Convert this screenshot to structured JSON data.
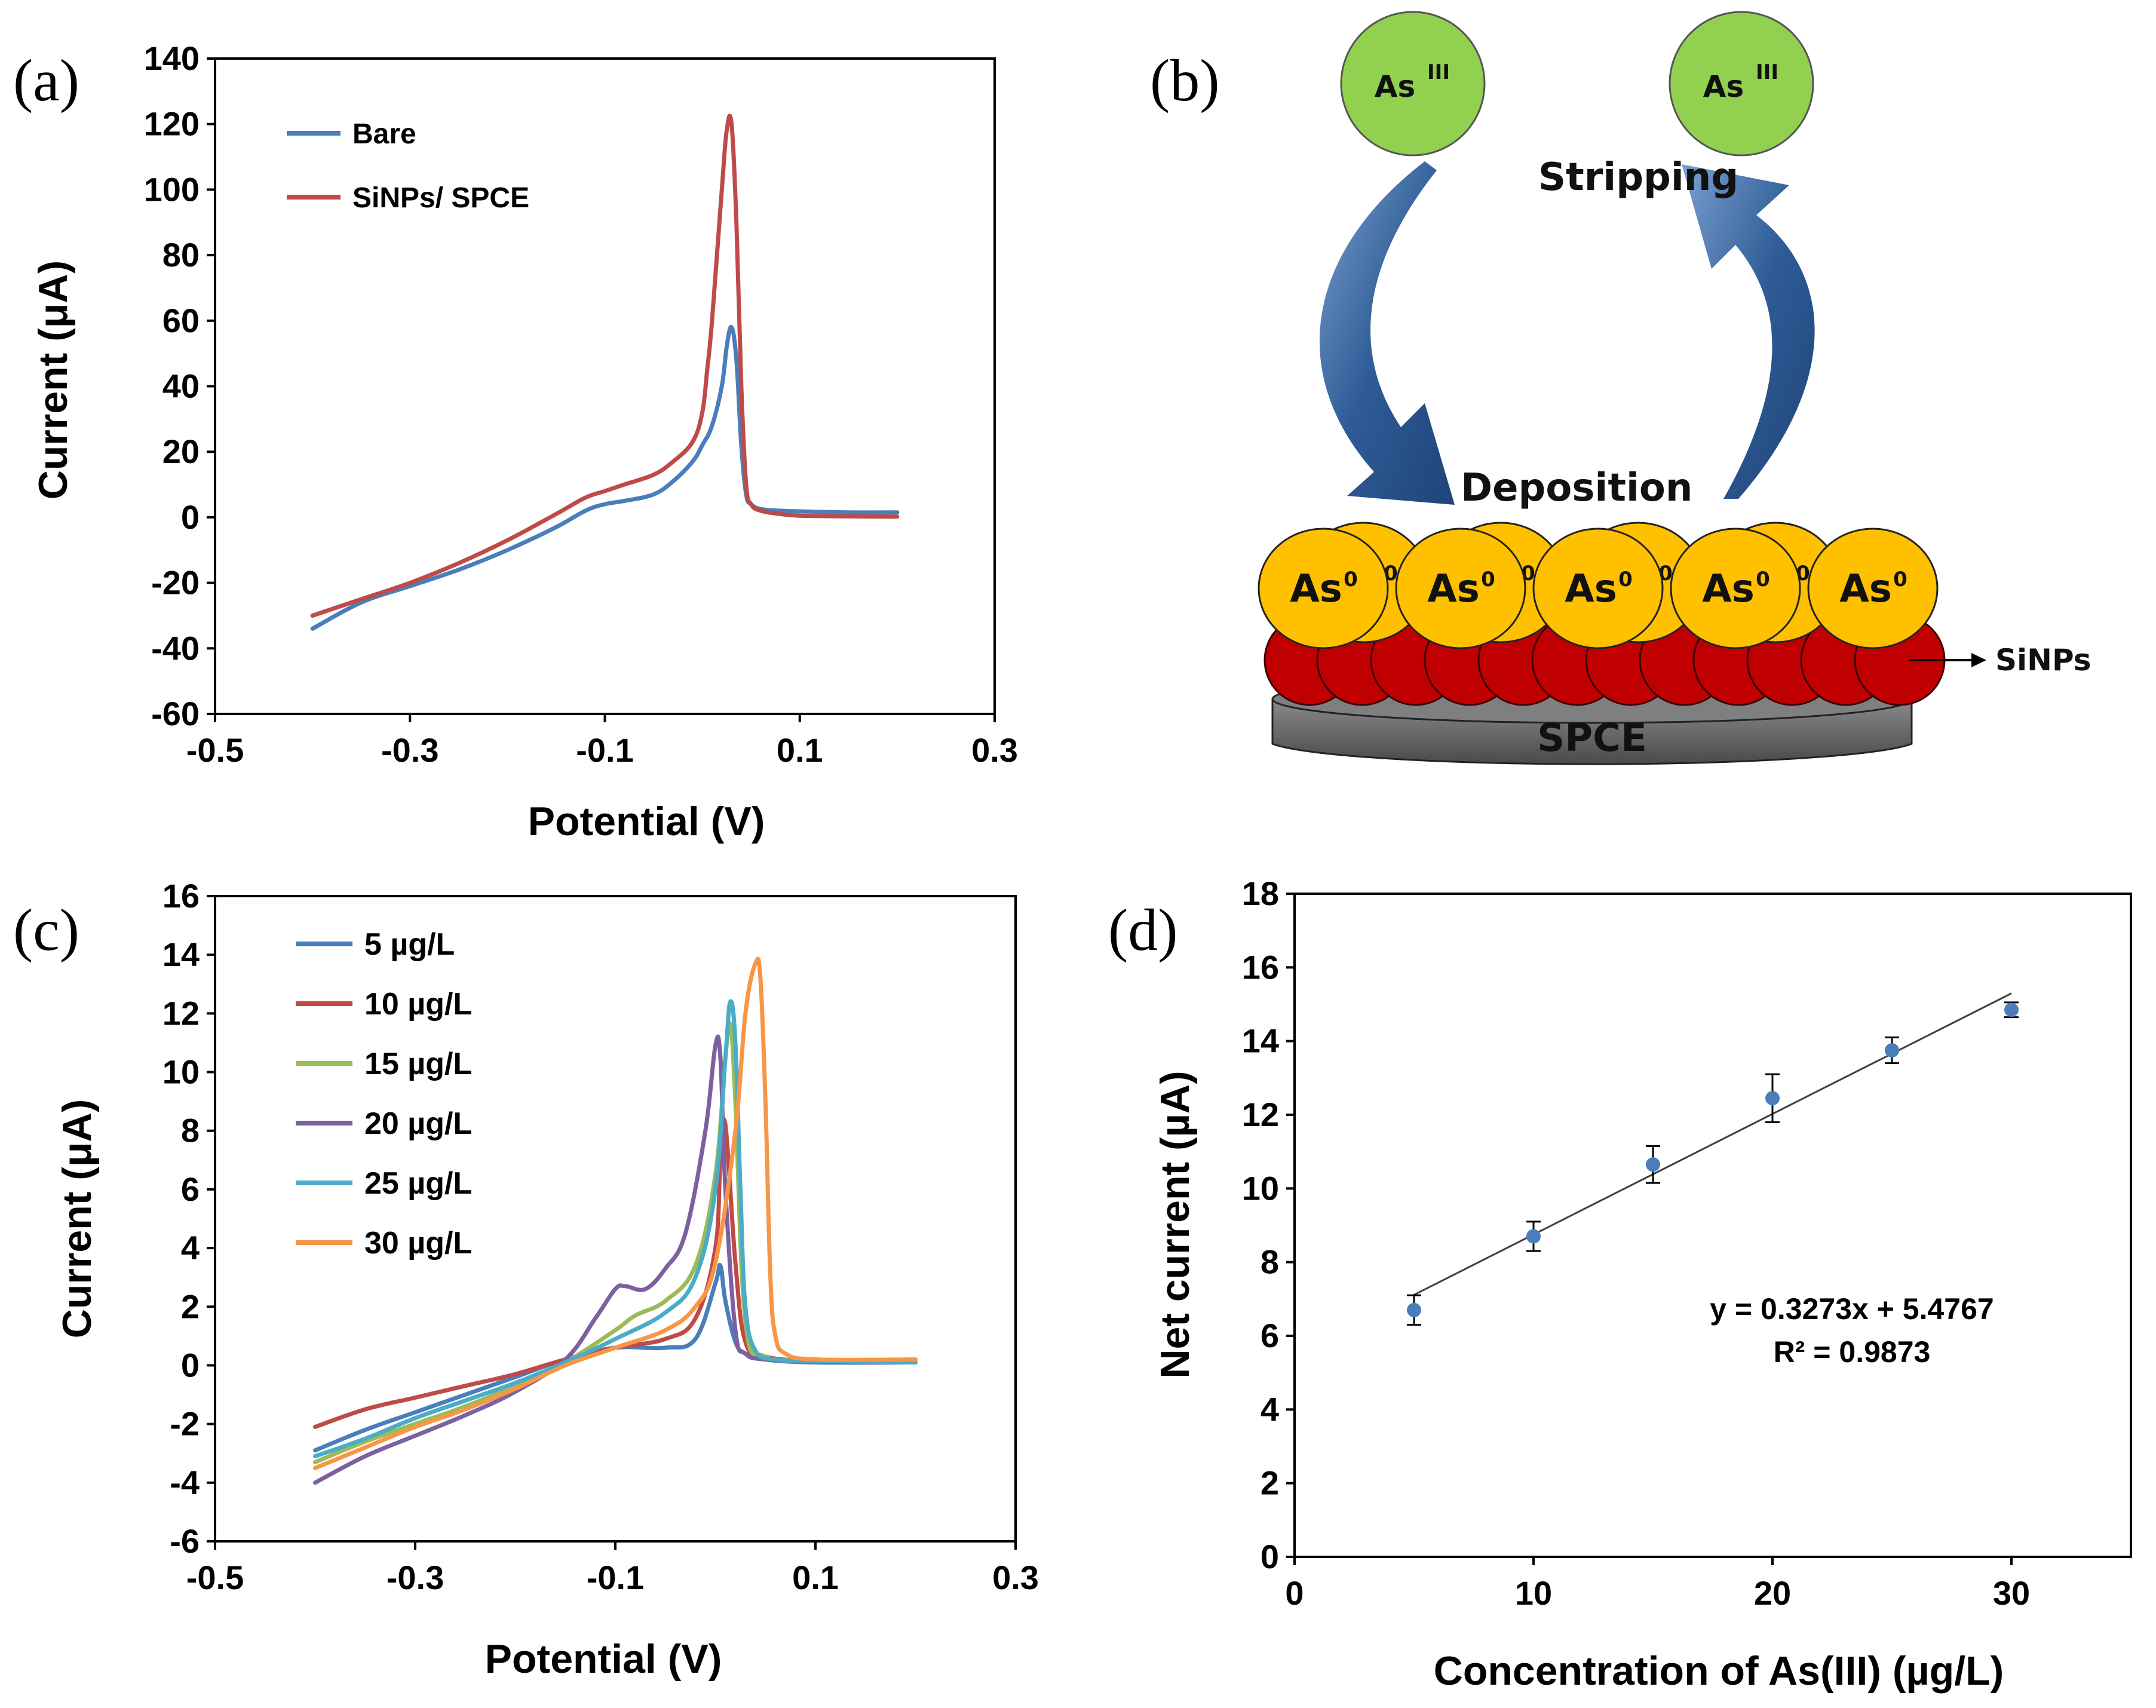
{
  "figure_labels": {
    "a": "(a)",
    "b": "(b)",
    "c": "(c)",
    "d": "(d)"
  },
  "schematic": {
    "ion_label": "As",
    "ion_superscript": "III",
    "stripping_label": "Stripping",
    "deposition_label": "Deposition",
    "metal_label": "As",
    "metal_superscript": "0",
    "nanoparticle_label": "SiNPs",
    "electrode_label": "SPCE",
    "colors": {
      "ion": "#92d050",
      "metal": "#ffc000",
      "nanoparticle": "#c00000",
      "electrode": "#595959",
      "arrow": "#2e5b96"
    }
  },
  "chart_data": [
    {
      "id": "a",
      "type": "line",
      "xlabel": "Potential (V)",
      "ylabel": "Current (μA)",
      "xlim": [
        -0.5,
        0.3
      ],
      "ylim": [
        -60,
        140
      ],
      "xticks": [
        -0.5,
        -0.3,
        -0.1,
        0.1,
        0.3
      ],
      "xtick_labels": [
        "-0.5",
        "-0.3",
        "-0.1",
        "0.1",
        "0.3"
      ],
      "yticks": [
        -60,
        -40,
        -20,
        0,
        20,
        40,
        60,
        80,
        100,
        120,
        140
      ],
      "ytick_labels": [
        "-60",
        "-40",
        "-20",
        "0",
        "20",
        "40",
        "60",
        "80",
        "100",
        "120",
        "140"
      ],
      "legend_position": "top-left",
      "series": [
        {
          "name": "Bare",
          "color": "#4a7ebb",
          "x": [
            -0.4,
            -0.35,
            -0.3,
            -0.25,
            -0.2,
            -0.15,
            -0.12,
            -0.1,
            -0.08,
            -0.05,
            -0.03,
            -0.01,
            0.0,
            0.01,
            0.02,
            0.025,
            0.03,
            0.035,
            0.04,
            0.045,
            0.05,
            0.06,
            0.08,
            0.1,
            0.15,
            0.2
          ],
          "y": [
            -34,
            -26,
            -21,
            -16,
            -10,
            -3,
            2,
            4,
            5,
            7,
            11,
            17,
            22,
            28,
            40,
            52,
            58,
            48,
            22,
            7,
            4,
            2.5,
            2,
            1.8,
            1.5,
            1.5
          ]
        },
        {
          "name": "SiNPs/ SPCE",
          "color": "#be4b48",
          "x": [
            -0.4,
            -0.35,
            -0.3,
            -0.25,
            -0.2,
            -0.15,
            -0.12,
            -0.1,
            -0.08,
            -0.05,
            -0.03,
            -0.01,
            0.0,
            0.005,
            0.01,
            0.02,
            0.025,
            0.03,
            0.035,
            0.04,
            0.045,
            0.05,
            0.06,
            0.08,
            0.1,
            0.15,
            0.2
          ],
          "y": [
            -30,
            -25,
            -20,
            -14,
            -7,
            1,
            6,
            8,
            10,
            13,
            17,
            23,
            32,
            45,
            60,
            100,
            118,
            120,
            90,
            40,
            10,
            4,
            2,
            1,
            0.5,
            0.3,
            0.2
          ]
        }
      ]
    },
    {
      "id": "c",
      "type": "line",
      "xlabel": "Potential (V)",
      "ylabel": "Current (μA)",
      "xlim": [
        -0.5,
        0.3
      ],
      "ylim": [
        -6,
        16
      ],
      "xticks": [
        -0.5,
        -0.3,
        -0.1,
        0.1,
        0.3
      ],
      "xtick_labels": [
        "-0.5",
        "-0.3",
        "-0.1",
        "0.1",
        "0.3"
      ],
      "yticks": [
        -6,
        -4,
        -2,
        0,
        2,
        4,
        6,
        8,
        10,
        12,
        14,
        16
      ],
      "ytick_labels": [
        "-6",
        "-4",
        "-2",
        "0",
        "2",
        "4",
        "6",
        "8",
        "10",
        "12",
        "14",
        "16"
      ],
      "legend_position": "top-left",
      "series": [
        {
          "name": "5 µg/L",
          "color": "#4a7ebb",
          "x": [
            -0.4,
            -0.35,
            -0.3,
            -0.25,
            -0.2,
            -0.15,
            -0.1,
            -0.05,
            -0.02,
            0.0,
            0.005,
            0.01,
            0.02,
            0.03,
            0.05,
            0.1,
            0.2
          ],
          "y": [
            -2.9,
            -2.2,
            -1.6,
            -1.0,
            -0.4,
            0.2,
            0.6,
            0.6,
            0.9,
            2.8,
            3.4,
            2.2,
            0.8,
            0.4,
            0.2,
            0.1,
            0.1
          ]
        },
        {
          "name": "10 µg/L",
          "color": "#be4b48",
          "x": [
            -0.4,
            -0.35,
            -0.3,
            -0.25,
            -0.2,
            -0.15,
            -0.1,
            -0.05,
            -0.02,
            0.0,
            0.005,
            0.01,
            0.02,
            0.03,
            0.05,
            0.1,
            0.2
          ],
          "y": [
            -2.1,
            -1.5,
            -1.1,
            -0.7,
            -0.3,
            0.2,
            0.6,
            0.9,
            1.6,
            4.0,
            7.0,
            8.2,
            3.5,
            0.8,
            0.3,
            0.15,
            0.1
          ]
        },
        {
          "name": "15 µg/L",
          "color": "#9bbb59",
          "x": [
            -0.4,
            -0.35,
            -0.3,
            -0.25,
            -0.2,
            -0.15,
            -0.1,
            -0.08,
            -0.05,
            -0.02,
            0.0,
            0.01,
            0.015,
            0.02,
            0.03,
            0.05,
            0.1,
            0.2
          ],
          "y": [
            -3.3,
            -2.6,
            -2.0,
            -1.4,
            -0.7,
            0.1,
            1.2,
            1.7,
            2.2,
            3.4,
            6.5,
            10.5,
            11.6,
            9.0,
            1.5,
            0.3,
            0.2,
            0.1
          ]
        },
        {
          "name": "20 µg/L",
          "color": "#7d60a0",
          "x": [
            -0.4,
            -0.35,
            -0.3,
            -0.25,
            -0.2,
            -0.15,
            -0.12,
            -0.1,
            -0.09,
            -0.07,
            -0.05,
            -0.03,
            -0.01,
            0.0,
            0.005,
            0.01,
            0.02,
            0.03,
            0.05,
            0.1,
            0.2
          ],
          "y": [
            -4.0,
            -3.1,
            -2.4,
            -1.7,
            -0.9,
            0.2,
            1.6,
            2.6,
            2.7,
            2.6,
            3.3,
            4.5,
            8.0,
            10.9,
            10.5,
            6.0,
            1.2,
            0.4,
            0.2,
            0.15,
            0.1
          ]
        },
        {
          "name": "25 µg/L",
          "color": "#4bacc6",
          "x": [
            -0.4,
            -0.35,
            -0.3,
            -0.25,
            -0.2,
            -0.15,
            -0.1,
            -0.05,
            -0.02,
            0.0,
            0.01,
            0.015,
            0.02,
            0.025,
            0.03,
            0.04,
            0.06,
            0.1,
            0.2
          ],
          "y": [
            -3.1,
            -2.5,
            -1.8,
            -1.2,
            -0.6,
            0.1,
            0.9,
            1.8,
            3.0,
            6.0,
            10.5,
            12.4,
            11.0,
            6.0,
            2.0,
            0.5,
            0.2,
            0.15,
            0.1
          ]
        },
        {
          "name": "30 µg/L",
          "color": "#f79646",
          "x": [
            -0.4,
            -0.35,
            -0.3,
            -0.25,
            -0.2,
            -0.15,
            -0.1,
            -0.05,
            -0.02,
            0.0,
            0.02,
            0.03,
            0.04,
            0.045,
            0.05,
            0.055,
            0.06,
            0.07,
            0.1,
            0.2
          ],
          "y": [
            -3.5,
            -2.8,
            -2.1,
            -1.5,
            -0.8,
            0.0,
            0.6,
            1.2,
            2.0,
            3.5,
            8.0,
            12.0,
            13.7,
            13.2,
            9.0,
            3.0,
            1.0,
            0.4,
            0.2,
            0.2
          ]
        }
      ]
    },
    {
      "id": "d",
      "type": "scatter",
      "xlabel": "Concentration of As(III) (µg/L)",
      "ylabel": "Net current (µA)",
      "xlim": [
        0,
        35
      ],
      "ylim": [
        0,
        18
      ],
      "xticks": [
        0,
        10,
        20,
        30
      ],
      "xtick_labels": [
        "0",
        "10",
        "20",
        "30"
      ],
      "yticks": [
        0,
        2,
        4,
        6,
        8,
        10,
        12,
        14,
        16,
        18
      ],
      "ytick_labels": [
        "0",
        "2",
        "4",
        "6",
        "8",
        "10",
        "12",
        "14",
        "16",
        "18"
      ],
      "series": [
        {
          "name": "Net current",
          "color": "#4a7ebb",
          "x": [
            5,
            10,
            15,
            20,
            25,
            30
          ],
          "y": [
            6.7,
            8.7,
            10.65,
            12.45,
            13.75,
            14.85
          ],
          "err": [
            0.4,
            0.4,
            0.5,
            0.65,
            0.35,
            0.2
          ]
        }
      ],
      "trendline": {
        "slope": 0.3273,
        "intercept": 5.4767,
        "x_range": [
          5,
          30
        ],
        "color": "#404040"
      },
      "equation": "y = 0.3273x + 5.4767",
      "r_squared": "R² = 0.9873"
    }
  ]
}
